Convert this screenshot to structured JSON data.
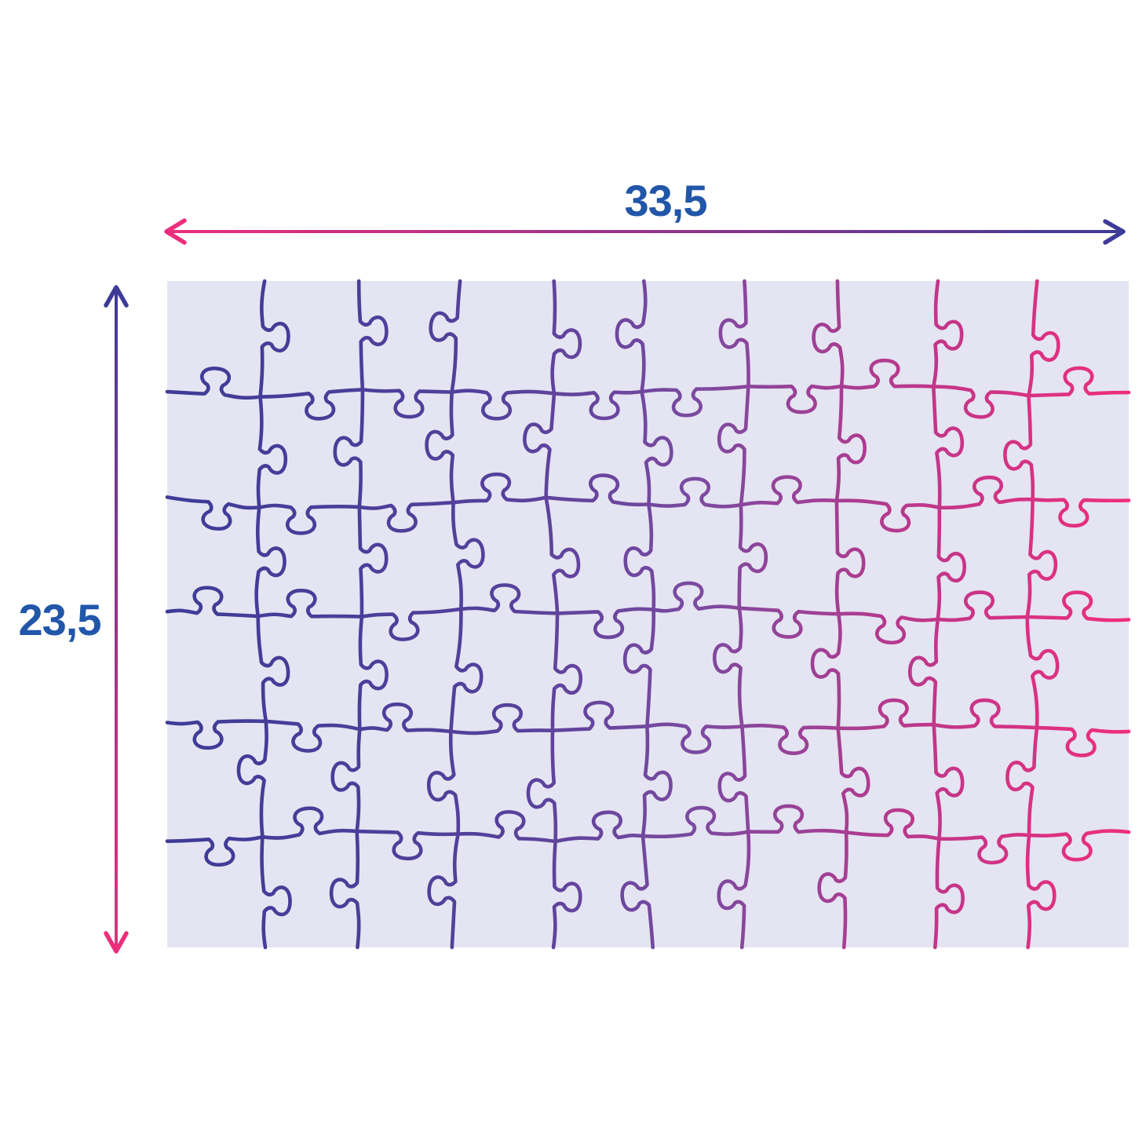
{
  "diagram": {
    "description": "Assembled jigsaw puzzle dimensions diagram",
    "width_label": "33,5",
    "height_label": "23,5",
    "puzzle": {
      "cols": 10,
      "rows": 6,
      "seed": 42
    },
    "colors": {
      "page_bg": "#ffffff",
      "board_bg": "#e5e4f2",
      "label_blue": "#2156a8",
      "arrow_pink": "#ec2e7c",
      "arrow_navy": "#3e3b97",
      "line_gradient": [
        {
          "offset": 0,
          "color": "#3e3b97"
        },
        {
          "offset": 0.35,
          "color": "#55419b"
        },
        {
          "offset": 0.55,
          "color": "#7b4aa0"
        },
        {
          "offset": 0.8,
          "color": "#c23689"
        },
        {
          "offset": 1,
          "color": "#ee2e7c"
        }
      ]
    }
  }
}
